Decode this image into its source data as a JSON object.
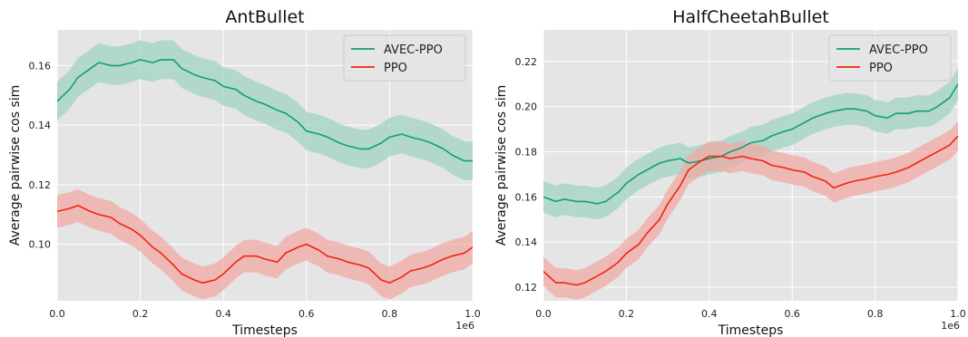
{
  "colors": {
    "avec": "#129e76",
    "ppo": "#f0250d",
    "avec_band": "#9fd3c1",
    "ppo_band": "#f0a9a4",
    "plot_bg": "#e5e5e5",
    "grid": "#ffffff"
  },
  "chart_data": [
    {
      "type": "line",
      "title": "AntBullet",
      "xlabel": "Timesteps",
      "ylabel": "Average pairwise cos sim",
      "x_offset_label": "1e6",
      "xlim": [
        0,
        1.0
      ],
      "ylim": [
        0.081,
        0.172
      ],
      "xticks": [
        0.0,
        0.2,
        0.4,
        0.6,
        0.8,
        1.0
      ],
      "xtick_labels": [
        "0.0",
        "0.2",
        "0.4",
        "0.6",
        "0.8",
        "1.0"
      ],
      "yticks": [
        0.1,
        0.12,
        0.14,
        0.16
      ],
      "ytick_labels": [
        "0.10",
        "0.12",
        "0.14",
        "0.16"
      ],
      "grid": true,
      "legend_position": "top-right",
      "x": [
        0.0,
        0.03,
        0.05,
        0.08,
        0.1,
        0.13,
        0.15,
        0.18,
        0.2,
        0.23,
        0.25,
        0.28,
        0.3,
        0.33,
        0.35,
        0.38,
        0.4,
        0.43,
        0.45,
        0.48,
        0.5,
        0.53,
        0.55,
        0.58,
        0.6,
        0.63,
        0.65,
        0.68,
        0.7,
        0.73,
        0.75,
        0.78,
        0.8,
        0.83,
        0.85,
        0.88,
        0.9,
        0.93,
        0.95,
        0.98,
        1.0
      ],
      "series": [
        {
          "name": "AVEC-PPO",
          "values": [
            0.148,
            0.152,
            0.156,
            0.159,
            0.161,
            0.16,
            0.16,
            0.161,
            0.162,
            0.161,
            0.162,
            0.162,
            0.159,
            0.157,
            0.156,
            0.155,
            0.153,
            0.152,
            0.15,
            0.148,
            0.147,
            0.145,
            0.144,
            0.141,
            0.138,
            0.137,
            0.136,
            0.134,
            0.133,
            0.132,
            0.132,
            0.134,
            0.136,
            0.137,
            0.136,
            0.135,
            0.134,
            0.132,
            0.13,
            0.128,
            0.128
          ],
          "band": 0.0065
        },
        {
          "name": "PPO",
          "values": [
            0.111,
            0.112,
            0.113,
            0.111,
            0.11,
            0.109,
            0.107,
            0.105,
            0.103,
            0.099,
            0.097,
            0.093,
            0.09,
            0.088,
            0.087,
            0.088,
            0.09,
            0.094,
            0.096,
            0.096,
            0.095,
            0.094,
            0.097,
            0.099,
            0.1,
            0.098,
            0.096,
            0.095,
            0.094,
            0.093,
            0.092,
            0.088,
            0.087,
            0.089,
            0.091,
            0.092,
            0.093,
            0.095,
            0.096,
            0.097,
            0.099
          ],
          "band": 0.0055
        }
      ]
    },
    {
      "type": "line",
      "title": "HalfCheetahBullet",
      "xlabel": "Timesteps",
      "ylabel": "Average pairwise cos sim",
      "x_offset_label": "1e6",
      "xlim": [
        0,
        1.0
      ],
      "ylim": [
        0.114,
        0.234
      ],
      "xticks": [
        0.0,
        0.2,
        0.4,
        0.6,
        0.8,
        1.0
      ],
      "xtick_labels": [
        "0.0",
        "0.2",
        "0.4",
        "0.6",
        "0.8",
        "1.0"
      ],
      "yticks": [
        0.12,
        0.14,
        0.16,
        0.18,
        0.2,
        0.22
      ],
      "ytick_labels": [
        "0.12",
        "0.14",
        "0.16",
        "0.18",
        "0.20",
        "0.22"
      ],
      "grid": true,
      "legend_position": "top-right",
      "x": [
        0.0,
        0.03,
        0.05,
        0.08,
        0.1,
        0.13,
        0.15,
        0.18,
        0.2,
        0.23,
        0.25,
        0.28,
        0.3,
        0.33,
        0.35,
        0.38,
        0.4,
        0.43,
        0.45,
        0.48,
        0.5,
        0.53,
        0.55,
        0.58,
        0.6,
        0.63,
        0.65,
        0.68,
        0.7,
        0.73,
        0.75,
        0.78,
        0.8,
        0.83,
        0.85,
        0.88,
        0.9,
        0.93,
        0.95,
        0.98,
        1.0
      ],
      "series": [
        {
          "name": "AVEC-PPO",
          "values": [
            0.16,
            0.158,
            0.159,
            0.158,
            0.158,
            0.157,
            0.158,
            0.162,
            0.166,
            0.17,
            0.172,
            0.175,
            0.176,
            0.177,
            0.175,
            0.176,
            0.177,
            0.178,
            0.18,
            0.182,
            0.184,
            0.185,
            0.187,
            0.189,
            0.19,
            0.193,
            0.195,
            0.197,
            0.198,
            0.199,
            0.199,
            0.198,
            0.196,
            0.195,
            0.197,
            0.197,
            0.198,
            0.198,
            0.2,
            0.204,
            0.21
          ],
          "band": 0.007
        },
        {
          "name": "PPO",
          "values": [
            0.127,
            0.122,
            0.122,
            0.121,
            0.122,
            0.125,
            0.127,
            0.131,
            0.135,
            0.139,
            0.144,
            0.15,
            0.157,
            0.165,
            0.172,
            0.176,
            0.178,
            0.178,
            0.177,
            0.178,
            0.177,
            0.176,
            0.174,
            0.173,
            0.172,
            0.171,
            0.169,
            0.167,
            0.164,
            0.166,
            0.167,
            0.168,
            0.169,
            0.17,
            0.171,
            0.173,
            0.175,
            0.178,
            0.18,
            0.183,
            0.187
          ],
          "band": 0.0065
        }
      ]
    }
  ]
}
